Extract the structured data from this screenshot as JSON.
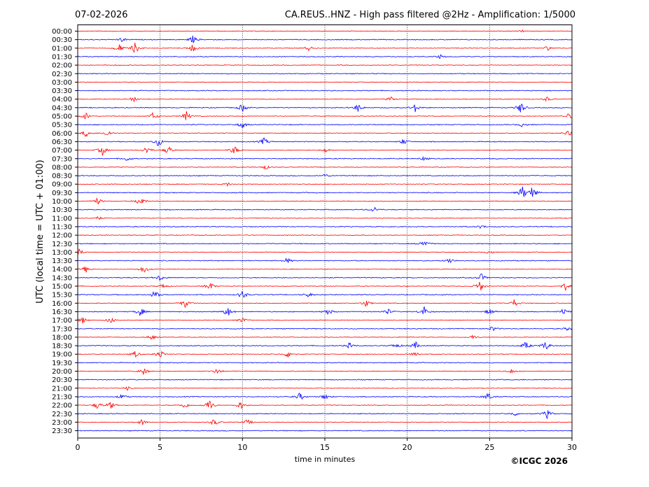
{
  "header": {
    "date": "07-02-2026",
    "title": "CA.REUS..HNZ - High pass filtered @2Hz - Amplification: 1/5000"
  },
  "footer": {
    "copyright": "©ICGC 2026"
  },
  "chart_data": {
    "type": "line",
    "title": "CA.REUS..HNZ - High pass filtered @2Hz - Amplification: 1/5000",
    "subtitle": "07-02-2026",
    "xlabel": "time in minutes",
    "ylabel": "UTC (local time = UTC + 01:00)",
    "xlim": [
      0,
      30
    ],
    "x_ticks": [
      0,
      5,
      10,
      15,
      20,
      25,
      30
    ],
    "vertical_grid": "dotted at 5-minute intervals",
    "row_labels": [
      "00:00",
      "00:30",
      "01:00",
      "01:30",
      "02:00",
      "02:30",
      "03:00",
      "03:30",
      "04:00",
      "04:30",
      "05:00",
      "05:30",
      "06:00",
      "06:30",
      "07:00",
      "07:30",
      "08:00",
      "08:30",
      "09:00",
      "09:30",
      "10:00",
      "10:30",
      "11:00",
      "11:30",
      "12:00",
      "12:30",
      "13:00",
      "13:30",
      "14:00",
      "14:30",
      "15:00",
      "15:30",
      "16:00",
      "16:30",
      "17:00",
      "17:30",
      "18:00",
      "18:30",
      "19:00",
      "19:30",
      "20:00",
      "20:30",
      "21:00",
      "21:30",
      "22:00",
      "22:30",
      "23:00",
      "23:30"
    ],
    "trace_colors": [
      "#ff0000",
      "#0000ff"
    ],
    "color_pattern": "alternating red/blue by row (00:00 red, 00:30 blue)",
    "events": [
      {
        "row": 0,
        "minute": 27.0,
        "amp": 0.2
      },
      {
        "row": 1,
        "minute": 2.7,
        "amp": 0.5
      },
      {
        "row": 1,
        "minute": 7.0,
        "amp": 0.8
      },
      {
        "row": 2,
        "minute": 2.5,
        "amp": 1.0
      },
      {
        "row": 2,
        "minute": 3.5,
        "amp": 1.3
      },
      {
        "row": 2,
        "minute": 7.0,
        "amp": 0.9
      },
      {
        "row": 2,
        "minute": 14.0,
        "amp": 0.5
      },
      {
        "row": 2,
        "minute": 28.5,
        "amp": 0.5
      },
      {
        "row": 3,
        "minute": 22.0,
        "amp": 0.4
      },
      {
        "row": 8,
        "minute": 3.4,
        "amp": 0.6
      },
      {
        "row": 8,
        "minute": 19.0,
        "amp": 0.5
      },
      {
        "row": 8,
        "minute": 28.5,
        "amp": 0.5
      },
      {
        "row": 9,
        "minute": 10.0,
        "amp": 0.9
      },
      {
        "row": 9,
        "minute": 17.0,
        "amp": 0.9
      },
      {
        "row": 9,
        "minute": 20.5,
        "amp": 0.9
      },
      {
        "row": 9,
        "minute": 26.9,
        "amp": 1.3
      },
      {
        "row": 10,
        "minute": 0.5,
        "amp": 0.8
      },
      {
        "row": 10,
        "minute": 4.6,
        "amp": 0.9
      },
      {
        "row": 10,
        "minute": 6.6,
        "amp": 1.0
      },
      {
        "row": 10,
        "minute": 29.8,
        "amp": 0.6
      },
      {
        "row": 11,
        "minute": 10.0,
        "amp": 0.8
      },
      {
        "row": 11,
        "minute": 27.0,
        "amp": 0.5
      },
      {
        "row": 12,
        "minute": 0.5,
        "amp": 0.8
      },
      {
        "row": 12,
        "minute": 1.8,
        "amp": 0.7
      },
      {
        "row": 12,
        "minute": 29.8,
        "amp": 0.8
      },
      {
        "row": 13,
        "minute": 4.9,
        "amp": 1.1
      },
      {
        "row": 13,
        "minute": 11.3,
        "amp": 0.8
      },
      {
        "row": 13,
        "minute": 19.8,
        "amp": 0.7
      },
      {
        "row": 14,
        "minute": 1.5,
        "amp": 1.1
      },
      {
        "row": 14,
        "minute": 4.2,
        "amp": 0.9
      },
      {
        "row": 14,
        "minute": 5.5,
        "amp": 1.0
      },
      {
        "row": 14,
        "minute": 9.5,
        "amp": 1.0
      },
      {
        "row": 14,
        "minute": 15.0,
        "amp": 0.5
      },
      {
        "row": 15,
        "minute": 3.0,
        "amp": 0.5
      },
      {
        "row": 15,
        "minute": 21.0,
        "amp": 0.4
      },
      {
        "row": 16,
        "minute": 11.4,
        "amp": 0.5
      },
      {
        "row": 17,
        "minute": 15.0,
        "amp": 0.4
      },
      {
        "row": 18,
        "minute": 9.1,
        "amp": 0.4
      },
      {
        "row": 19,
        "minute": 27.0,
        "amp": 1.4
      },
      {
        "row": 19,
        "minute": 27.6,
        "amp": 1.3
      },
      {
        "row": 20,
        "minute": 1.2,
        "amp": 0.8
      },
      {
        "row": 20,
        "minute": 3.8,
        "amp": 1.2
      },
      {
        "row": 21,
        "minute": 18.0,
        "amp": 0.6
      },
      {
        "row": 22,
        "minute": 1.2,
        "amp": 0.4
      },
      {
        "row": 23,
        "minute": 24.5,
        "amp": 0.4
      },
      {
        "row": 25,
        "minute": 21.0,
        "amp": 1.0
      },
      {
        "row": 26,
        "minute": 0.1,
        "amp": 0.7
      },
      {
        "row": 26,
        "minute": 25.0,
        "amp": 0.4
      },
      {
        "row": 27,
        "minute": 12.7,
        "amp": 0.6
      },
      {
        "row": 27,
        "minute": 22.6,
        "amp": 0.7
      },
      {
        "row": 28,
        "minute": 0.5,
        "amp": 0.7
      },
      {
        "row": 28,
        "minute": 4.0,
        "amp": 0.9
      },
      {
        "row": 29,
        "minute": 5.0,
        "amp": 0.7
      },
      {
        "row": 29,
        "minute": 24.5,
        "amp": 0.8
      },
      {
        "row": 30,
        "minute": 5.2,
        "amp": 0.6
      },
      {
        "row": 30,
        "minute": 8.0,
        "amp": 1.0
      },
      {
        "row": 30,
        "minute": 24.4,
        "amp": 1.3
      },
      {
        "row": 30,
        "minute": 29.6,
        "amp": 0.9
      },
      {
        "row": 31,
        "minute": 4.7,
        "amp": 0.9
      },
      {
        "row": 31,
        "minute": 10.0,
        "amp": 1.0
      },
      {
        "row": 31,
        "minute": 14.0,
        "amp": 0.5
      },
      {
        "row": 32,
        "minute": 6.5,
        "amp": 0.9
      },
      {
        "row": 32,
        "minute": 17.5,
        "amp": 0.8
      },
      {
        "row": 32,
        "minute": 26.5,
        "amp": 0.8
      },
      {
        "row": 33,
        "minute": 3.8,
        "amp": 1.0
      },
      {
        "row": 33,
        "minute": 9.1,
        "amp": 1.1
      },
      {
        "row": 33,
        "minute": 15.2,
        "amp": 0.8
      },
      {
        "row": 33,
        "minute": 18.8,
        "amp": 0.7
      },
      {
        "row": 33,
        "minute": 21.0,
        "amp": 1.2
      },
      {
        "row": 33,
        "minute": 25.0,
        "amp": 0.7
      },
      {
        "row": 33,
        "minute": 29.5,
        "amp": 0.8
      },
      {
        "row": 34,
        "minute": 0.3,
        "amp": 0.7
      },
      {
        "row": 34,
        "minute": 2.0,
        "amp": 0.8
      },
      {
        "row": 34,
        "minute": 10.0,
        "amp": 0.6
      },
      {
        "row": 35,
        "minute": 25.2,
        "amp": 0.6
      },
      {
        "row": 35,
        "minute": 29.8,
        "amp": 0.5
      },
      {
        "row": 36,
        "minute": 4.5,
        "amp": 0.6
      },
      {
        "row": 36,
        "minute": 24.0,
        "amp": 0.5
      },
      {
        "row": 37,
        "minute": 16.5,
        "amp": 0.6
      },
      {
        "row": 37,
        "minute": 19.3,
        "amp": 0.6
      },
      {
        "row": 37,
        "minute": 20.5,
        "amp": 0.8
      },
      {
        "row": 37,
        "minute": 27.2,
        "amp": 0.9
      },
      {
        "row": 37,
        "minute": 28.4,
        "amp": 1.0
      },
      {
        "row": 38,
        "minute": 3.5,
        "amp": 0.7
      },
      {
        "row": 38,
        "minute": 5.0,
        "amp": 1.0
      },
      {
        "row": 38,
        "minute": 12.8,
        "amp": 0.9
      },
      {
        "row": 38,
        "minute": 20.5,
        "amp": 0.7
      },
      {
        "row": 40,
        "minute": 4.0,
        "amp": 0.8
      },
      {
        "row": 40,
        "minute": 8.5,
        "amp": 0.7
      },
      {
        "row": 40,
        "minute": 26.3,
        "amp": 0.5
      },
      {
        "row": 42,
        "minute": 3.0,
        "amp": 0.4
      },
      {
        "row": 43,
        "minute": 2.7,
        "amp": 0.6
      },
      {
        "row": 43,
        "minute": 13.5,
        "amp": 0.9
      },
      {
        "row": 43,
        "minute": 15.0,
        "amp": 0.6
      },
      {
        "row": 43,
        "minute": 24.9,
        "amp": 0.9
      },
      {
        "row": 44,
        "minute": 1.2,
        "amp": 0.8
      },
      {
        "row": 44,
        "minute": 2.0,
        "amp": 0.8
      },
      {
        "row": 44,
        "minute": 6.5,
        "amp": 0.7
      },
      {
        "row": 44,
        "minute": 8.0,
        "amp": 1.3
      },
      {
        "row": 44,
        "minute": 9.9,
        "amp": 0.9
      },
      {
        "row": 45,
        "minute": 28.5,
        "amp": 0.9
      },
      {
        "row": 45,
        "minute": 26.5,
        "amp": 0.5
      },
      {
        "row": 46,
        "minute": 3.9,
        "amp": 0.7
      },
      {
        "row": 46,
        "minute": 8.3,
        "amp": 0.8
      },
      {
        "row": 46,
        "minute": 10.3,
        "amp": 0.6
      }
    ]
  }
}
